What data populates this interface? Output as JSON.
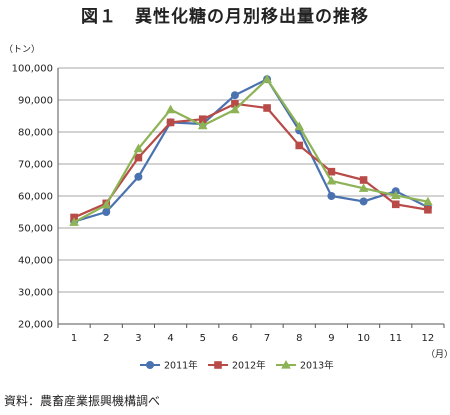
{
  "figure": {
    "title": "図１　異性化糖の月別移出量の推移",
    "source": "資料：農畜産業振興機構調べ"
  },
  "colors": {
    "s2011": "#4a72b0",
    "s2012": "#b84a48",
    "s2013": "#8db356",
    "grid": "#8a8a8a"
  },
  "chart_data": {
    "type": "line",
    "title": "図１　異性化糖の月別移出量の推移",
    "ylabel": "（トン）",
    "xlabel": "（月）",
    "x": [
      "1",
      "2",
      "3",
      "4",
      "5",
      "6",
      "7",
      "8",
      "9",
      "10",
      "11",
      "12"
    ],
    "ylim": [
      20000,
      100000
    ],
    "yticks": [
      "20,000",
      "30,000",
      "40,000",
      "50,000",
      "60,000",
      "70,000",
      "80,000",
      "90,000",
      "100,000"
    ],
    "grid": true,
    "legend": "bottom",
    "series": [
      {
        "name": "2011年",
        "marker": "circle",
        "values": [
          52000,
          55000,
          66000,
          83000,
          82500,
          91500,
          96500,
          80500,
          60000,
          58300,
          61500,
          56500
        ]
      },
      {
        "name": "2012年",
        "marker": "square",
        "values": [
          53300,
          57700,
          72000,
          83000,
          84000,
          88800,
          87500,
          75800,
          67600,
          65000,
          57400,
          55700
        ]
      },
      {
        "name": "2013年",
        "marker": "triangle",
        "values": [
          51800,
          57200,
          74800,
          87000,
          82000,
          87000,
          96500,
          81700,
          64700,
          62400,
          60200,
          58200
        ]
      }
    ]
  }
}
